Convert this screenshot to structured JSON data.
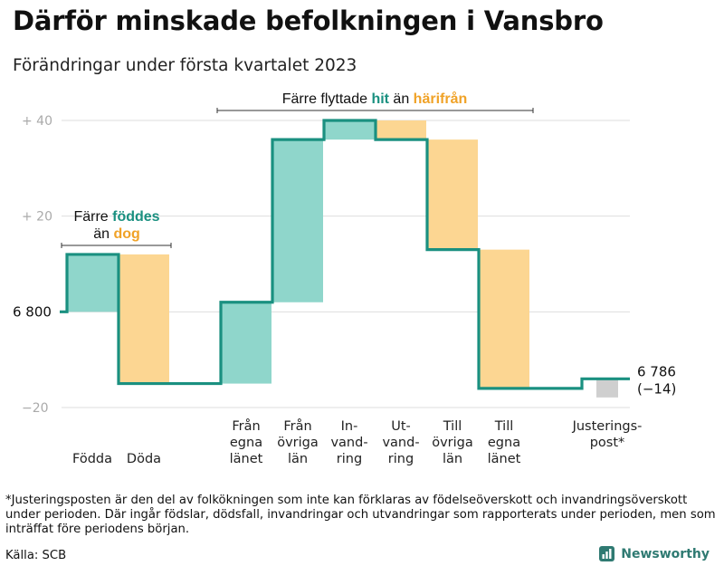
{
  "title": "Därför minskade befolkningen i Vansbro",
  "subtitle": "Förändringar under första kvartalet 2023",
  "footnote": "*Justeringsposten är den del av folkökningen som inte kan förklaras av födelseöverskott och invandringsöverskott under perioden. Där ingår födslar, dödsfall, invandringar och utvandringar som rapporterats under perioden, men som inträffat före periodens början.",
  "source": "Källa: SCB",
  "brand": "Newsworthy",
  "colors": {
    "increase": "#8fd6cb",
    "decrease": "#fcd692",
    "adjustment": "#cfcfcf",
    "line": "#1a9080",
    "accent_teal": "#1a9080",
    "accent_orange": "#f0a227",
    "grid": "#dedede",
    "axis_text": "#aaaaaa"
  },
  "annotations": [
    {
      "id": "births-deaths",
      "parts": [
        {
          "line": 0,
          "text": "Färre "
        },
        {
          "line": 0,
          "text": "föddes",
          "color": "teal"
        },
        {
          "line": 1,
          "text": "än "
        },
        {
          "line": 1,
          "text": "dog",
          "color": "orange"
        }
      ]
    },
    {
      "id": "migration",
      "parts": [
        {
          "line": 0,
          "text": "Färre flyttade "
        },
        {
          "line": 0,
          "text": "hit",
          "color": "teal"
        },
        {
          "line": 0,
          "text": " än "
        },
        {
          "line": 0,
          "text": "härifrån",
          "color": "orange"
        }
      ]
    }
  ],
  "chart_data": {
    "type": "waterfall",
    "title": "Därför minskade befolkningen i Vansbro",
    "subtitle": "Förändringar under första kvartalet 2023",
    "unit": "personer",
    "start_value": 6800,
    "end_value": 6786,
    "end_label": "6 786",
    "end_change_label": "(−14)",
    "y_axis": {
      "ticks": [
        {
          "value": 40,
          "label": "+ 40"
        },
        {
          "value": 20,
          "label": "+ 20"
        },
        {
          "value": 0,
          "label": "6 800"
        },
        {
          "value": -20,
          "label": "−20"
        }
      ],
      "ylim": [
        -20,
        40
      ],
      "grid": true
    },
    "steps": [
      {
        "label": [
          "Födda"
        ],
        "change": 12,
        "kind": "increase"
      },
      {
        "label": [
          "Döda"
        ],
        "change": -27,
        "kind": "decrease"
      },
      {
        "label": [
          "Från",
          "egna",
          "länet"
        ],
        "change": 17,
        "kind": "increase"
      },
      {
        "label": [
          "Från",
          "övriga",
          "län"
        ],
        "change": 34,
        "kind": "increase"
      },
      {
        "label": [
          "In-",
          "vand-",
          "ring"
        ],
        "change": 4,
        "kind": "increase"
      },
      {
        "label": [
          "Ut-",
          "vand-",
          "ring"
        ],
        "change": -4,
        "kind": "decrease"
      },
      {
        "label": [
          "Till",
          "övriga",
          "län"
        ],
        "change": -23,
        "kind": "decrease"
      },
      {
        "label": [
          "Till",
          "egna",
          "länet"
        ],
        "change": -29,
        "kind": "decrease"
      },
      {
        "label": [
          "Justerings-",
          "post*"
        ],
        "change": 2,
        "kind": "adjustment"
      }
    ]
  }
}
